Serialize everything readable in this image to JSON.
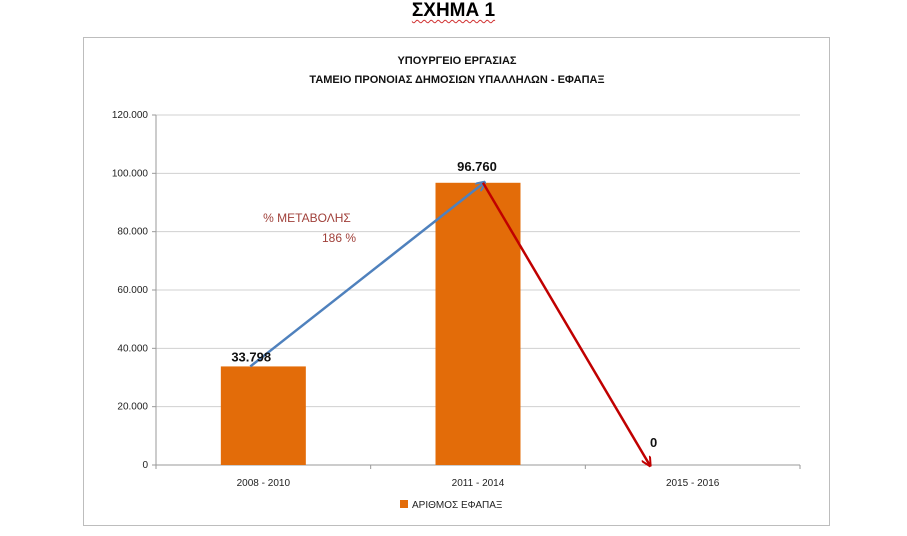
{
  "figure_label": "ΣΧΗΜΑ 1",
  "chart_data": {
    "type": "bar",
    "title": "ΥΠΟΥΡΓΕΙΟ ΕΡΓΑΣΙΑΣ",
    "subtitle": "ΤΑΜΕΙΟ ΠΡΟΝΟΙΑΣ ΔΗΜΟΣΙΩΝ ΥΠΑΛΛΗΛΩΝ -   ΕΦΑΠΑΞ",
    "categories": [
      "2008 - 2010",
      "2011 - 2014",
      "2015 - 2016"
    ],
    "series": [
      {
        "name": "ΑΡΙΘΜΟΣ ΕΦΑΠΑΞ",
        "values": [
          33798,
          96760,
          0
        ],
        "color": "#e36c09"
      }
    ],
    "data_labels": [
      "33.798",
      "96.760",
      "0"
    ],
    "yticks": [
      "0",
      "20.000",
      "40.000",
      "60.000",
      "80.000",
      "100.000",
      "120.000"
    ],
    "ylim": [
      0,
      120000
    ],
    "grid": true,
    "legend_position": "bottom",
    "annotation": {
      "line1": "%  ΜΕΤΑΒΟΛΗΣ",
      "line2": "186 %",
      "color": "#a0403a"
    },
    "arrows": [
      {
        "from_category": 0,
        "from_value": 33798,
        "to_category": 1,
        "to_value": 96760,
        "color": "#4f81bd"
      },
      {
        "from_category": 1,
        "from_value": 96760,
        "to_category": 2,
        "to_value": 0,
        "color": "#c00000"
      }
    ]
  }
}
